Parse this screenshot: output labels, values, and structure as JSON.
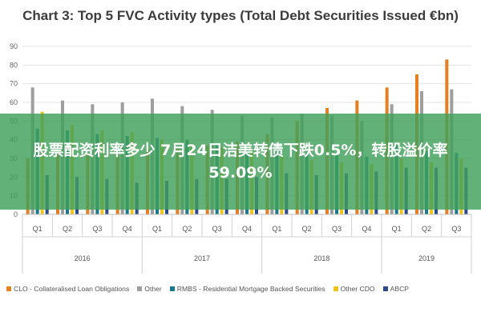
{
  "chart_data": {
    "type": "bar",
    "title": "Chart 3: Top 5 FVC Activity types (Total Debt Securities Issued €bn)",
    "quarters": [
      "Q1",
      "Q2",
      "Q3",
      "Q4",
      "Q1",
      "Q2",
      "Q3",
      "Q4",
      "Q1",
      "Q2",
      "Q3",
      "Q4",
      "Q1",
      "Q2",
      "Q3"
    ],
    "years": [
      {
        "label": "2016",
        "span": 4
      },
      {
        "label": "2017",
        "span": 4
      },
      {
        "label": "2018",
        "span": 4
      },
      {
        "label": "2019",
        "span": 3
      }
    ],
    "ylim": [
      0,
      90
    ],
    "yticks": [
      0,
      10,
      20,
      30,
      40,
      50,
      60,
      70,
      80,
      90
    ],
    "grid": true,
    "legend_position": "bottom",
    "series": [
      {
        "name": "CLO - Collateralised Loan Obligations",
        "color": "#e67e22",
        "values": [
          30,
          32,
          33,
          34,
          35,
          36,
          37,
          39,
          43,
          50,
          57,
          61,
          68,
          75,
          83
        ]
      },
      {
        "name": "Other",
        "color": "#9e9e9e",
        "values": [
          68,
          61,
          59,
          60,
          62,
          58,
          56,
          53,
          52,
          54,
          53,
          50,
          59,
          66,
          67
        ]
      },
      {
        "name": "RMBS - Residential Mortgage Backed Securities",
        "color": "#1a7a8c",
        "values": [
          46,
          45,
          43,
          42,
          41,
          40,
          38,
          37,
          35,
          33,
          32,
          31,
          37,
          34,
          33
        ]
      },
      {
        "name": "Other CDO",
        "color": "#f0c419",
        "values": [
          55,
          48,
          45,
          44,
          40,
          38,
          36,
          34,
          31,
          29,
          28,
          27,
          30,
          28,
          30
        ]
      },
      {
        "name": "ABCP",
        "color": "#2d4a8a",
        "values": [
          21,
          20,
          19,
          17,
          18,
          19,
          19,
          20,
          22,
          21,
          22,
          23,
          25,
          25,
          25
        ]
      }
    ]
  },
  "overlay": {
    "text": "股票配资利率多少 7月24日洁美转债下跌0.5%，转股溢价率59.09%"
  }
}
